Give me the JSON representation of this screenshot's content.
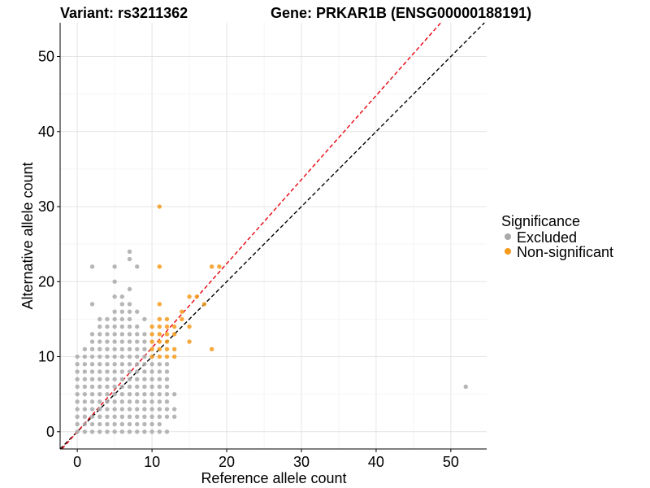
{
  "chart_data": {
    "type": "scatter",
    "title_variant": "Variant: rs3211362",
    "title_gene": "Gene: PRKAR1B (ENSG00000188191)",
    "xlabel": "Reference allele count",
    "ylabel": "Alternative allele count",
    "xlim": [
      -2.3,
      54.8
    ],
    "ylim": [
      -2.3,
      54.5
    ],
    "xticks": [
      0,
      10,
      20,
      30,
      40,
      50
    ],
    "yticks": [
      0,
      10,
      20,
      30,
      40,
      50
    ],
    "grid": true,
    "legend": {
      "title": "Significance",
      "position": "right",
      "entries": [
        {
          "label": "Excluded",
          "color": "#a9a9a9"
        },
        {
          "label": "Non-significant",
          "color": "#f59a1b"
        }
      ]
    },
    "reference_lines": [
      {
        "name": "identity",
        "slope": 1.0,
        "intercept": 0,
        "color": "#000000",
        "style": "dashed"
      },
      {
        "name": "expected-ratio",
        "slope": 1.12,
        "intercept": 0,
        "color": "#e8000b",
        "style": "dashed"
      }
    ],
    "series": [
      {
        "name": "Excluded",
        "color": "#a9a9a9",
        "points": [
          [
            0,
            0
          ],
          [
            0,
            1
          ],
          [
            0,
            2
          ],
          [
            0,
            3
          ],
          [
            0,
            4
          ],
          [
            0,
            5
          ],
          [
            0,
            6
          ],
          [
            0,
            7
          ],
          [
            0,
            8
          ],
          [
            0,
            9
          ],
          [
            0,
            10
          ],
          [
            1,
            0
          ],
          [
            1,
            1
          ],
          [
            1,
            2
          ],
          [
            1,
            3
          ],
          [
            1,
            4
          ],
          [
            1,
            5
          ],
          [
            1,
            6
          ],
          [
            1,
            7
          ],
          [
            1,
            8
          ],
          [
            1,
            9
          ],
          [
            1,
            10
          ],
          [
            1,
            11
          ],
          [
            2,
            0
          ],
          [
            2,
            1
          ],
          [
            2,
            2
          ],
          [
            2,
            3
          ],
          [
            2,
            4
          ],
          [
            2,
            5
          ],
          [
            2,
            6
          ],
          [
            2,
            7
          ],
          [
            2,
            8
          ],
          [
            2,
            9
          ],
          [
            2,
            10
          ],
          [
            2,
            11
          ],
          [
            2,
            12
          ],
          [
            2,
            13
          ],
          [
            2,
            17
          ],
          [
            2,
            22
          ],
          [
            3,
            0
          ],
          [
            3,
            1
          ],
          [
            3,
            2
          ],
          [
            3,
            3
          ],
          [
            3,
            4
          ],
          [
            3,
            5
          ],
          [
            3,
            6
          ],
          [
            3,
            7
          ],
          [
            3,
            8
          ],
          [
            3,
            9
          ],
          [
            3,
            10
          ],
          [
            3,
            11
          ],
          [
            3,
            12
          ],
          [
            3,
            13
          ],
          [
            3,
            14
          ],
          [
            3,
            15
          ],
          [
            4,
            0
          ],
          [
            4,
            1
          ],
          [
            4,
            2
          ],
          [
            4,
            3
          ],
          [
            4,
            4
          ],
          [
            4,
            5
          ],
          [
            4,
            6
          ],
          [
            4,
            7
          ],
          [
            4,
            8
          ],
          [
            4,
            9
          ],
          [
            4,
            10
          ],
          [
            4,
            11
          ],
          [
            4,
            12
          ],
          [
            4,
            13
          ],
          [
            4,
            14
          ],
          [
            4,
            15
          ],
          [
            5,
            0
          ],
          [
            5,
            1
          ],
          [
            5,
            2
          ],
          [
            5,
            3
          ],
          [
            5,
            4
          ],
          [
            5,
            5
          ],
          [
            5,
            6
          ],
          [
            5,
            7
          ],
          [
            5,
            8
          ],
          [
            5,
            9
          ],
          [
            5,
            10
          ],
          [
            5,
            11
          ],
          [
            5,
            12
          ],
          [
            5,
            13
          ],
          [
            5,
            14
          ],
          [
            5,
            15
          ],
          [
            5,
            16
          ],
          [
            5,
            18
          ],
          [
            5,
            20
          ],
          [
            5,
            22
          ],
          [
            6,
            0
          ],
          [
            6,
            1
          ],
          [
            6,
            2
          ],
          [
            6,
            3
          ],
          [
            6,
            4
          ],
          [
            6,
            5
          ],
          [
            6,
            6
          ],
          [
            6,
            7
          ],
          [
            6,
            8
          ],
          [
            6,
            9
          ],
          [
            6,
            10
          ],
          [
            6,
            11
          ],
          [
            6,
            12
          ],
          [
            6,
            13
          ],
          [
            6,
            14
          ],
          [
            6,
            15
          ],
          [
            6,
            16
          ],
          [
            6,
            17
          ],
          [
            6,
            18
          ],
          [
            7,
            0
          ],
          [
            7,
            1
          ],
          [
            7,
            2
          ],
          [
            7,
            3
          ],
          [
            7,
            4
          ],
          [
            7,
            5
          ],
          [
            7,
            6
          ],
          [
            7,
            7
          ],
          [
            7,
            8
          ],
          [
            7,
            9
          ],
          [
            7,
            10
          ],
          [
            7,
            11
          ],
          [
            7,
            12
          ],
          [
            7,
            13
          ],
          [
            7,
            14
          ],
          [
            7,
            15
          ],
          [
            7,
            16
          ],
          [
            7,
            17
          ],
          [
            7,
            19
          ],
          [
            7,
            23
          ],
          [
            7,
            24
          ],
          [
            8,
            0
          ],
          [
            8,
            1
          ],
          [
            8,
            2
          ],
          [
            8,
            3
          ],
          [
            8,
            4
          ],
          [
            8,
            5
          ],
          [
            8,
            6
          ],
          [
            8,
            7
          ],
          [
            8,
            8
          ],
          [
            8,
            9
          ],
          [
            8,
            10
          ],
          [
            8,
            11
          ],
          [
            8,
            12
          ],
          [
            8,
            13
          ],
          [
            8,
            14
          ],
          [
            8,
            16
          ],
          [
            8,
            22
          ],
          [
            9,
            0
          ],
          [
            9,
            1
          ],
          [
            9,
            2
          ],
          [
            9,
            3
          ],
          [
            9,
            4
          ],
          [
            9,
            5
          ],
          [
            9,
            6
          ],
          [
            9,
            7
          ],
          [
            9,
            8
          ],
          [
            9,
            9
          ],
          [
            9,
            10
          ],
          [
            9,
            11
          ],
          [
            9,
            12
          ],
          [
            9,
            13
          ],
          [
            9,
            15
          ],
          [
            10,
            0
          ],
          [
            10,
            1
          ],
          [
            10,
            2
          ],
          [
            10,
            3
          ],
          [
            10,
            4
          ],
          [
            10,
            5
          ],
          [
            10,
            6
          ],
          [
            10,
            7
          ],
          [
            10,
            8
          ],
          [
            10,
            9
          ],
          [
            11,
            0
          ],
          [
            11,
            1
          ],
          [
            11,
            2
          ],
          [
            11,
            3
          ],
          [
            11,
            4
          ],
          [
            11,
            5
          ],
          [
            11,
            6
          ],
          [
            11,
            7
          ],
          [
            11,
            8
          ],
          [
            11,
            9
          ],
          [
            12,
            0
          ],
          [
            12,
            2
          ],
          [
            12,
            3
          ],
          [
            12,
            4
          ],
          [
            12,
            5
          ],
          [
            12,
            6
          ],
          [
            12,
            7
          ],
          [
            12,
            8
          ],
          [
            12,
            9
          ],
          [
            13,
            2
          ],
          [
            13,
            3
          ],
          [
            13,
            5
          ],
          [
            52,
            6
          ]
        ]
      },
      {
        "name": "Non-significant",
        "color": "#f59a1b",
        "points": [
          [
            10,
            10
          ],
          [
            10,
            11
          ],
          [
            10,
            12
          ],
          [
            10,
            13
          ],
          [
            10,
            14
          ],
          [
            11,
            10
          ],
          [
            11,
            11
          ],
          [
            11,
            12
          ],
          [
            11,
            13
          ],
          [
            11,
            14
          ],
          [
            11,
            15
          ],
          [
            11,
            17
          ],
          [
            11,
            22
          ],
          [
            11,
            30
          ],
          [
            12,
            10
          ],
          [
            12,
            11
          ],
          [
            12,
            12
          ],
          [
            12,
            13
          ],
          [
            12,
            14
          ],
          [
            12,
            15
          ],
          [
            13,
            10
          ],
          [
            13,
            11
          ],
          [
            13,
            13
          ],
          [
            13,
            14
          ],
          [
            14,
            15
          ],
          [
            14,
            16
          ],
          [
            15,
            12
          ],
          [
            15,
            14
          ],
          [
            15,
            18
          ],
          [
            16,
            18
          ],
          [
            17,
            17
          ],
          [
            18,
            11
          ],
          [
            18,
            22
          ],
          [
            19,
            22
          ]
        ]
      }
    ]
  }
}
